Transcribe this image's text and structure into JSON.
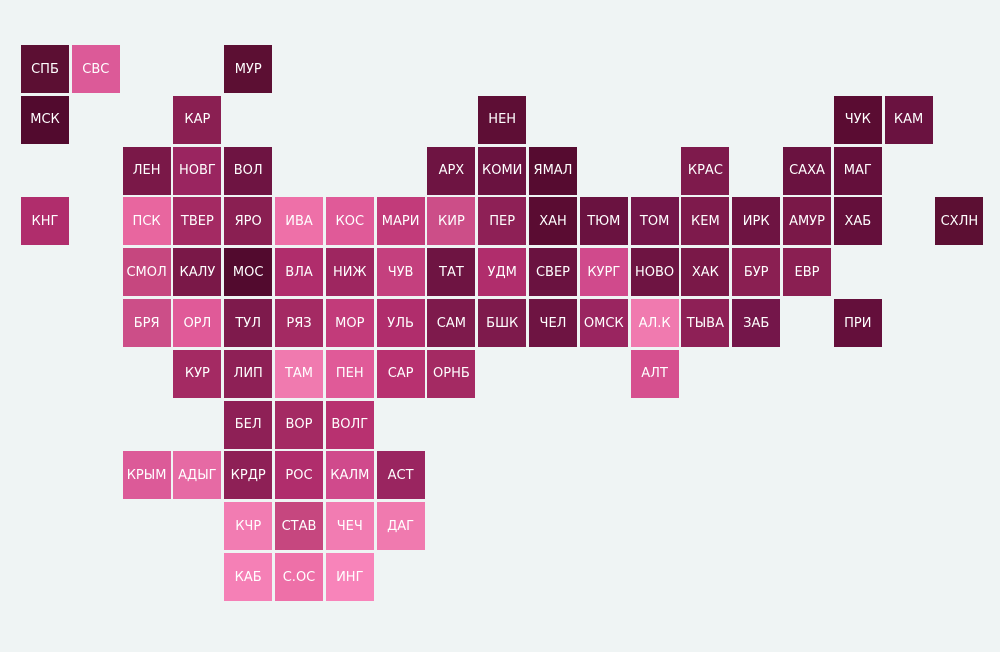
{
  "tile_map": {
    "rows": [
      [
        {
          "label": "СПБ",
          "color": "#5c0f33"
        },
        {
          "label": "СВС",
          "color": "#dc5a98"
        },
        null,
        null,
        {
          "label": "МУР",
          "color": "#5c0f33"
        }
      ],
      [
        {
          "label": "МСК",
          "color": "#520a2e"
        },
        null,
        null,
        {
          "label": "КАР",
          "color": "#8a1f52"
        },
        null,
        null,
        null,
        null,
        null,
        {
          "label": "НЕН",
          "color": "#5e0e35"
        },
        null,
        null,
        null,
        null,
        null,
        null,
        {
          "label": "ЧУК",
          "color": "#5a0c32"
        },
        {
          "label": "КАМ",
          "color": "#6a1240"
        }
      ],
      [
        null,
        null,
        {
          "label": "ЛЕН",
          "color": "#7a1848"
        },
        {
          "label": "НОВГ",
          "color": "#9a2560"
        },
        {
          "label": "ВОЛ",
          "color": "#6e1442"
        },
        null,
        null,
        null,
        {
          "label": "АРХ",
          "color": "#6e1442"
        },
        {
          "label": "КОМИ",
          "color": "#6a1240"
        },
        {
          "label": "ЯМАЛ",
          "color": "#560b30"
        },
        null,
        null,
        {
          "label": "КРАС",
          "color": "#7e1a4c"
        },
        null,
        {
          "label": "САХА",
          "color": "#6a1240"
        },
        {
          "label": "МАГ",
          "color": "#640f3b"
        }
      ],
      [
        {
          "label": "КНГ",
          "color": "#b02d6c"
        },
        null,
        {
          "label": "ПСК",
          "color": "#e8669f"
        },
        {
          "label": "ТВЕР",
          "color": "#a42a63"
        },
        {
          "label": "ЯРО",
          "color": "#8a1f52"
        },
        {
          "label": "ИВА",
          "color": "#ee70a8"
        },
        {
          "label": "КОС",
          "color": "#e05a98"
        },
        {
          "label": "МАРИ",
          "color": "#c23b7a"
        },
        {
          "label": "КИР",
          "color": "#cc4e88"
        },
        {
          "label": "ПЕР",
          "color": "#8e2056"
        },
        {
          "label": "ХАН",
          "color": "#5a0c32"
        },
        {
          "label": "ТЮМ",
          "color": "#6a1240"
        },
        {
          "label": "ТОМ",
          "color": "#74164a"
        },
        {
          "label": "КЕМ",
          "color": "#7e1a4c"
        },
        {
          "label": "ИРК",
          "color": "#6e1442"
        },
        {
          "label": "АМУР",
          "color": "#7a1848"
        },
        {
          "label": "ХАБ",
          "color": "#640f3b"
        },
        null,
        {
          "label": "СХЛН",
          "color": "#5c0f33"
        }
      ],
      [
        null,
        null,
        {
          "label": "СМОЛ",
          "color": "#c6477f"
        },
        {
          "label": "КАЛУ",
          "color": "#7a1848"
        },
        {
          "label": "МОС",
          "color": "#520a2e"
        },
        {
          "label": "ВЛА",
          "color": "#b02d6c"
        },
        {
          "label": "НИЖ",
          "color": "#9e2660"
        },
        {
          "label": "ЧУВ",
          "color": "#c4407e"
        },
        {
          "label": "ТАТ",
          "color": "#6e1442"
        },
        {
          "label": "УДМ",
          "color": "#b02d6c"
        },
        {
          "label": "СВЕР",
          "color": "#6a1240"
        },
        {
          "label": "КУРГ",
          "color": "#d04a8c"
        },
        {
          "label": "НОВО",
          "color": "#6e1442"
        },
        {
          "label": "ХАК",
          "color": "#7a1848"
        },
        {
          "label": "БУР",
          "color": "#8a1f52"
        },
        {
          "label": "ЕВР",
          "color": "#8a1f52"
        }
      ],
      [
        null,
        null,
        {
          "label": "БРЯ",
          "color": "#cc4e88"
        },
        {
          "label": "ОРЛ",
          "color": "#e05a98"
        },
        {
          "label": "ТУЛ",
          "color": "#7e1a4c"
        },
        {
          "label": "РЯЗ",
          "color": "#a42a63"
        },
        {
          "label": "МОР",
          "color": "#c23b7a"
        },
        {
          "label": "УЛЬ",
          "color": "#b02d6c"
        },
        {
          "label": "САМ",
          "color": "#7e1a4c"
        },
        {
          "label": "БШК",
          "color": "#7e1a4c"
        },
        {
          "label": "ЧЕЛ",
          "color": "#6e1442"
        },
        {
          "label": "ОМСК",
          "color": "#9a2560"
        },
        {
          "label": "АЛ.К",
          "color": "#f07aaf"
        },
        {
          "label": "ТЫВА",
          "color": "#8e2056"
        },
        {
          "label": "ЗАБ",
          "color": "#74164a"
        },
        null,
        {
          "label": "ПРИ",
          "color": "#640f3b"
        }
      ],
      [
        null,
        null,
        null,
        {
          "label": "КУР",
          "color": "#a42a63"
        },
        {
          "label": "ЛИП",
          "color": "#8e2056"
        },
        {
          "label": "ТАМ",
          "color": "#f07aaf"
        },
        {
          "label": "ПЕН",
          "color": "#e05a98"
        },
        {
          "label": "САР",
          "color": "#b83170"
        },
        {
          "label": "ОРНБ",
          "color": "#a42a63"
        },
        null,
        null,
        null,
        {
          "label": "АЛТ",
          "color": "#d6508f"
        }
      ],
      [
        null,
        null,
        null,
        null,
        {
          "label": "БЕЛ",
          "color": "#8e2056"
        },
        {
          "label": "ВОР",
          "color": "#a42a63"
        },
        {
          "label": "ВОЛГ",
          "color": "#b83170"
        }
      ],
      [
        null,
        null,
        {
          "label": "КРЫМ",
          "color": "#dc5a98"
        },
        {
          "label": "АДЫГ",
          "color": "#e66aa4"
        },
        {
          "label": "КРДР",
          "color": "#8e2056"
        },
        {
          "label": "РОС",
          "color": "#b02d6c"
        },
        {
          "label": "КАЛМ",
          "color": "#d04a8c"
        },
        {
          "label": "АСТ",
          "color": "#9a2560"
        }
      ],
      [
        null,
        null,
        null,
        null,
        {
          "label": "КЧР",
          "color": "#f27cb2"
        },
        {
          "label": "СТАВ",
          "color": "#c6477f"
        },
        {
          "label": "ЧЕЧ",
          "color": "#f27cb2"
        },
        {
          "label": "ДАГ",
          "color": "#f07aaf"
        }
      ],
      [
        null,
        null,
        null,
        null,
        {
          "label": "КАБ",
          "color": "#f580b6"
        },
        {
          "label": "С.ОС",
          "color": "#ee70a8"
        },
        {
          "label": "ИНГ",
          "color": "#f884ba"
        }
      ]
    ]
  }
}
